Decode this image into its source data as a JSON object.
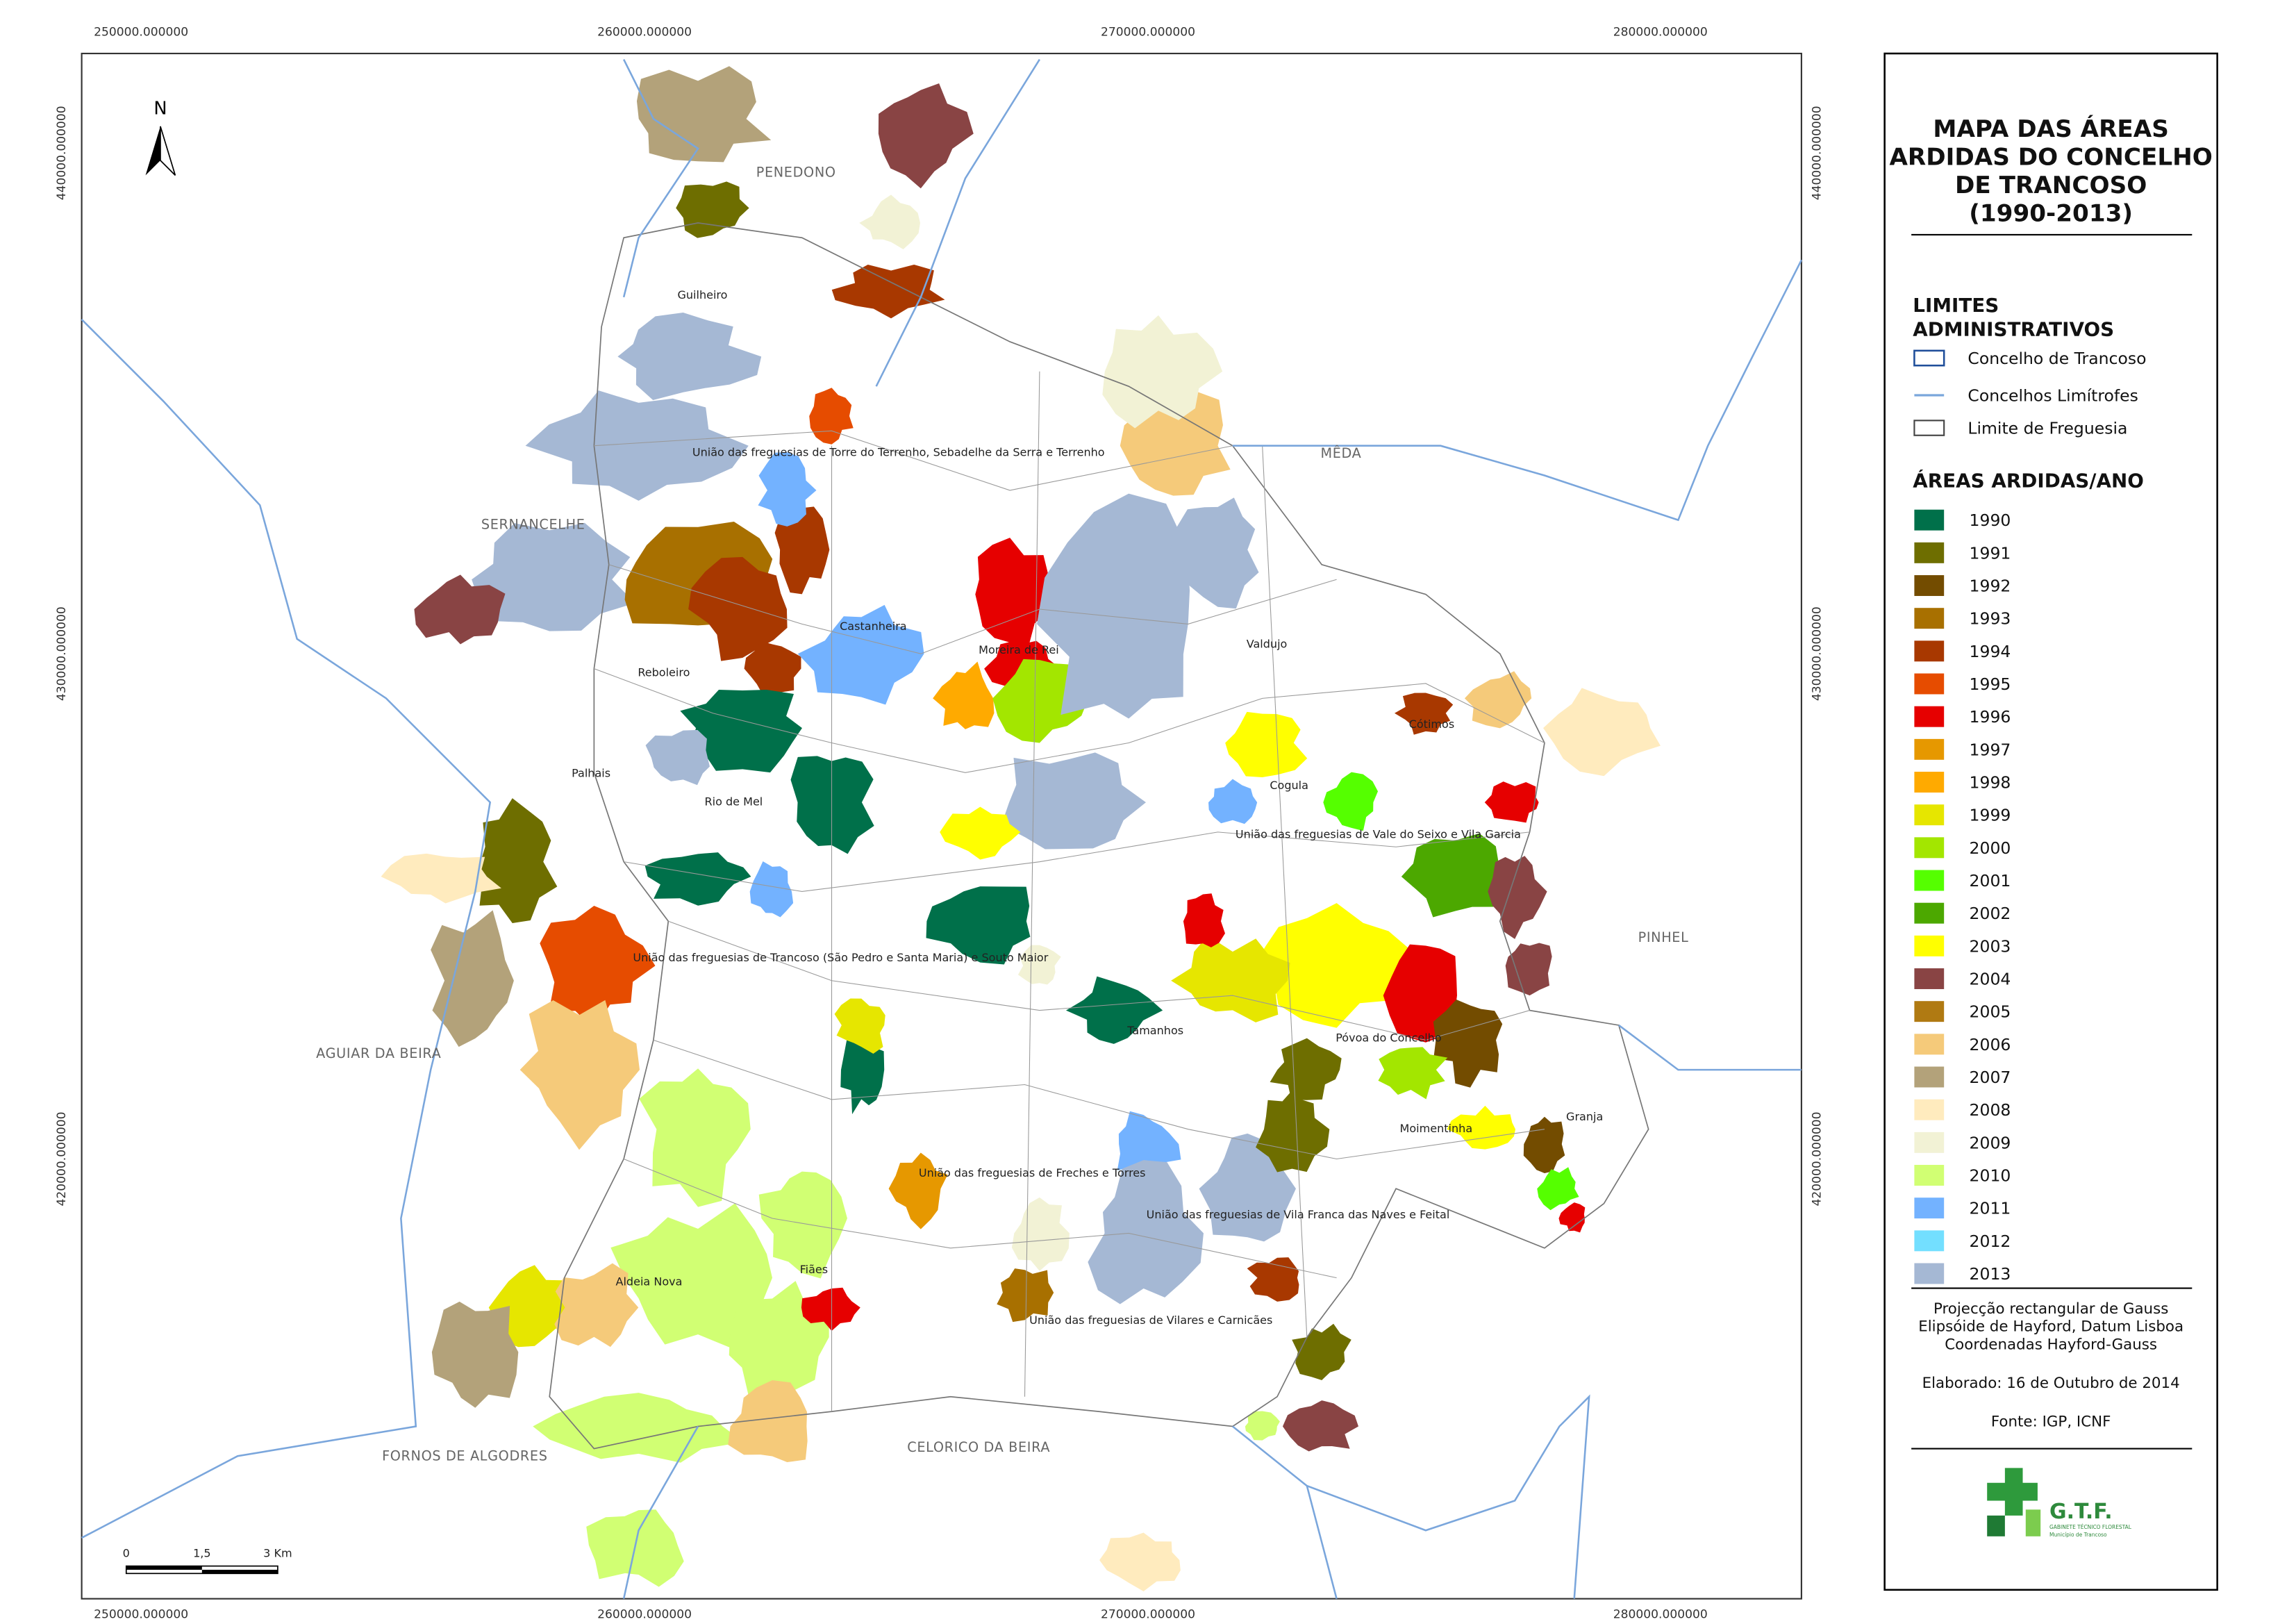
{
  "title_lines": [
    "MAPA DAS ÁREAS",
    "ARDIDAS DO CONCELHO",
    "DE TRANCOSO",
    "(1990-2013)"
  ],
  "admin_limits": {
    "heading_lines": [
      "LIMITES",
      "ADMINISTRATIVOS"
    ],
    "items": [
      "Concelho de Trancoso",
      "Concelhos Limítrofes",
      "Limite de Freguesia"
    ]
  },
  "burned_areas": {
    "heading": "ÁREAS ARDIDAS/ANO",
    "years": [
      {
        "label": "1990",
        "color": "#00704a"
      },
      {
        "label": "1991",
        "color": "#6e6e00"
      },
      {
        "label": "1992",
        "color": "#734c00"
      },
      {
        "label": "1993",
        "color": "#a87000"
      },
      {
        "label": "1994",
        "color": "#a83800"
      },
      {
        "label": "1995",
        "color": "#e64c00"
      },
      {
        "label": "1996",
        "color": "#e60000"
      },
      {
        "label": "1997",
        "color": "#e69800"
      },
      {
        "label": "1998",
        "color": "#ffaa00"
      },
      {
        "label": "1999",
        "color": "#e6e600"
      },
      {
        "label": "2000",
        "color": "#a3e600"
      },
      {
        "label": "2001",
        "color": "#55ff00"
      },
      {
        "label": "2002",
        "color": "#4ca800"
      },
      {
        "label": "2003",
        "color": "#ffff00"
      },
      {
        "label": "2004",
        "color": "#894444"
      },
      {
        "label": "2005",
        "color": "#b07a12"
      },
      {
        "label": "2006",
        "color": "#f5ca7a"
      },
      {
        "label": "2007",
        "color": "#b3a27a"
      },
      {
        "label": "2008",
        "color": "#ffebbe"
      },
      {
        "label": "2009",
        "color": "#f2f2d5"
      },
      {
        "label": "2010",
        "color": "#d1ff73"
      },
      {
        "label": "2011",
        "color": "#73b2ff"
      },
      {
        "label": "2012",
        "color": "#73dfff"
      },
      {
        "label": "2013",
        "color": "#a5b8d4"
      }
    ]
  },
  "notes": [
    "Projecção rectangular de Gauss",
    "Elipsóide de Hayford, Datum Lisboa",
    "Coordenadas Hayford-Gauss",
    "Elaborado: 16 de Outubro de 2014",
    "Fonte: IGP, ICNF"
  ],
  "logo": {
    "name": "G.T.F.",
    "sub": [
      "GABINETE TÉCNICO FLORESTAL",
      "Município de Trancoso"
    ]
  },
  "north": "N",
  "scale_bar": [
    "0",
    "1,5",
    "3 Km"
  ],
  "grid_x": [
    "250000.000000",
    "260000.000000",
    "270000.000000",
    "280000.000000"
  ],
  "grid_y": [
    "440000.000000",
    "430000.000000",
    "420000.000000"
  ],
  "places": [
    "PENEDONO",
    "Guilheiro",
    "União das freguesias de Torre do Terrenho, Sebadelhe da Serra e Terrenho",
    "MÊDA",
    "SERNANCELHE",
    "Castanheira",
    "Moreira de Rei",
    "Valdujo",
    "Reboleiro",
    "Cótimos",
    "Palhais",
    "Cogula",
    "Rio de Mel",
    "União das freguesias de Vale do Seixo e Vila Garcia",
    "PINHEL",
    "União das freguesias de Trancoso (São Pedro e Santa Maria) e Souto Maior",
    "Tamanhos",
    "Póvoa do Concelho",
    "AGUIAR DA BEIRA",
    "Granja",
    "Moimentinha",
    "União das freguesias de Freches e Torres",
    "União das freguesias de Vila Franca das Naves e Feital",
    "Fiães",
    "Aldeia Nova",
    "União das freguesias de Vilares e Carnicães",
    "CELORICO DA BEIRA",
    "FORNOS DE ALGODRES"
  ]
}
